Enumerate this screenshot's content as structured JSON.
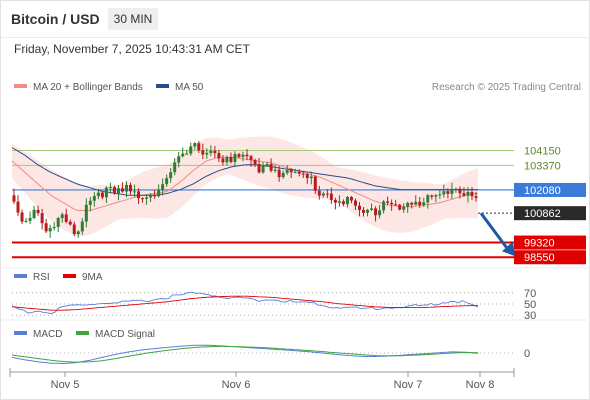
{
  "header": {
    "title": "Bitcoin / USD",
    "interval": "30 MIN",
    "datetime": "Friday, November 7, 2025 10:43:31 AM CET"
  },
  "colors": {
    "up": "#2e7d32",
    "down": "#b71c1c",
    "ma20": "#f28b82",
    "bollinger": "#fde3e1",
    "ma50": "#5c6bc0",
    "resistance": "#a6c97a",
    "support": "#e00000",
    "current": "#3d7bd9",
    "arrow": "#1f5aa6",
    "rsi": "#5b7fd6",
    "rsi_ma": "#e00000",
    "macd": "#5b7fd6",
    "macd_signal": "#3fa53f"
  },
  "chart_data": [
    {
      "type": "candlestick",
      "legend": [
        {
          "name": "MA 20 + Bollinger Bands",
          "color": "#f28b82"
        },
        {
          "name": "MA 50",
          "color": "#2a4d8f"
        }
      ],
      "credit": "Research © 2025 Trading Central",
      "ylim": [
        98300,
        106800
      ],
      "x_ticks": [
        "Nov 5",
        "Nov 6",
        "Nov 7",
        "Nov 8"
      ],
      "levels": [
        {
          "label": "104150",
          "value": 104150,
          "kind": "resistance"
        },
        {
          "label": "103370",
          "value": 103370,
          "kind": "resistance"
        },
        {
          "label": "102080",
          "value": 102080,
          "kind": "current"
        },
        {
          "label": "100862",
          "value": 100862,
          "kind": "pivot"
        },
        {
          "label": "99320",
          "value": 99320,
          "kind": "support"
        },
        {
          "label": "98550",
          "value": 98550,
          "kind": "support"
        }
      ],
      "close_anchors": [
        101800,
        100500,
        101200,
        99800,
        100600,
        99600,
        101500,
        102100,
        101800,
        102000,
        101800,
        102000,
        102500,
        103500,
        104200,
        104300,
        104000,
        103500,
        103800,
        103200,
        103500,
        103000,
        102800,
        102700,
        102000,
        101800,
        101500,
        100800,
        100900,
        101600,
        101300,
        101200,
        101300,
        101900,
        102300,
        102000,
        101300
      ],
      "ma20_anchors": [
        103600,
        103000,
        102400,
        101800,
        101400,
        101000,
        101000,
        101200,
        101400,
        101600,
        101800,
        101900,
        102000,
        102500,
        103100,
        103600,
        103800,
        103800,
        103700,
        103600,
        103500,
        103300,
        103100,
        102900,
        102700,
        102400,
        102100,
        101800,
        101500,
        101300,
        101200,
        101200,
        101300,
        101400,
        101600,
        101800,
        101900
      ],
      "ma50_anchors": [
        104300,
        103900,
        103400,
        103000,
        102700,
        102400,
        102200,
        102000,
        101900,
        101800,
        101800,
        101800,
        101900,
        102100,
        102400,
        102800,
        103100,
        103300,
        103400,
        103400,
        103300,
        103200,
        103100,
        103000,
        102900,
        102800,
        102700,
        102500,
        102300,
        102200,
        102100,
        102100,
        102100,
        102100,
        102100,
        102100,
        102100
      ],
      "projection": {
        "from": 100862,
        "to": 98550
      }
    },
    {
      "type": "line",
      "legend": [
        {
          "name": "RSI",
          "color": "#5b7fd6"
        },
        {
          "name": "9MA",
          "color": "#e00000"
        }
      ],
      "ylim": [
        25,
        75
      ],
      "y_ticks": [
        "70",
        "50",
        "30"
      ],
      "series": [
        {
          "name": "RSI",
          "values": [
            46,
            36,
            38,
            33,
            45,
            47,
            49,
            52,
            51,
            53,
            55,
            58,
            62,
            66,
            69,
            68,
            64,
            60,
            61,
            57,
            58,
            55,
            53,
            52,
            47,
            45,
            44,
            41,
            42,
            45,
            44,
            46,
            47,
            52,
            56,
            53,
            44
          ]
        },
        {
          "name": "9MA",
          "values": [
            45,
            43,
            41,
            39,
            39,
            40,
            42,
            44,
            46,
            48,
            50,
            52,
            54,
            57,
            60,
            62,
            63,
            64,
            64,
            63,
            62,
            60,
            58,
            56,
            54,
            51,
            49,
            47,
            45,
            44,
            44,
            44,
            44,
            45,
            46,
            47,
            47
          ]
        }
      ]
    },
    {
      "type": "line",
      "legend": [
        {
          "name": "MACD",
          "color": "#5b7fd6"
        },
        {
          "name": "MACD Signal",
          "color": "#3fa53f"
        }
      ],
      "ylim": [
        -1000,
        1000
      ],
      "y_ticks": [
        "0"
      ],
      "series": [
        {
          "name": "MACD",
          "values": [
            -260,
            -400,
            -520,
            -600,
            -620,
            -560,
            -430,
            -250,
            -80,
            60,
            180,
            260,
            330,
            400,
            450,
            460,
            430,
            380,
            330,
            280,
            230,
            180,
            130,
            70,
            0,
            -80,
            -150,
            -200,
            -210,
            -180,
            -140,
            -80,
            -30,
            20,
            70,
            50,
            -20
          ]
        },
        {
          "name": "MACD Signal",
          "values": [
            -120,
            -220,
            -330,
            -430,
            -500,
            -540,
            -520,
            -450,
            -330,
            -190,
            -60,
            60,
            160,
            250,
            320,
            370,
            390,
            380,
            360,
            330,
            290,
            240,
            190,
            140,
            80,
            20,
            -40,
            -100,
            -150,
            -170,
            -160,
            -130,
            -100,
            -50,
            0,
            30,
            20
          ]
        }
      ]
    }
  ]
}
